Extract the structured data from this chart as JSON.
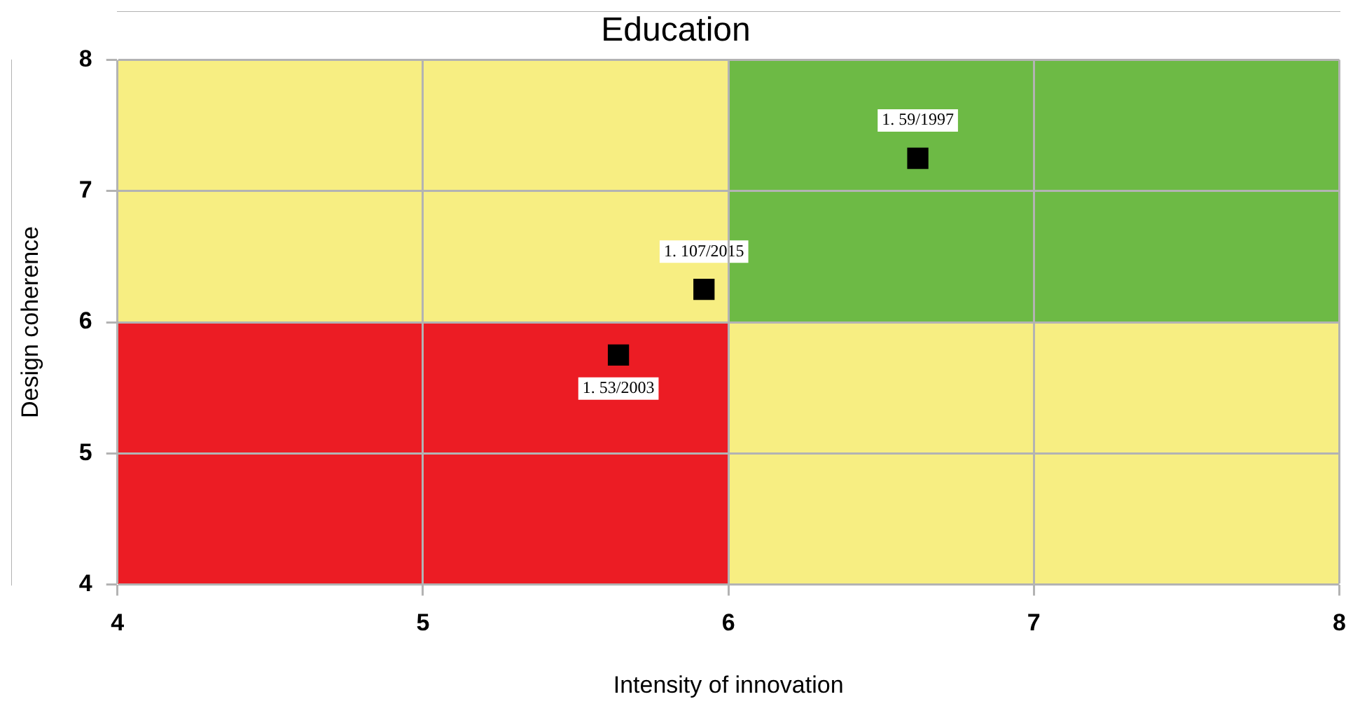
{
  "chart_data": {
    "type": "scatter",
    "title": "Education",
    "xlabel": "Intensity of innovation",
    "ylabel": "Design coherence",
    "series": [
      {
        "color": "#000000",
        "x": [
          6.62,
          5.92,
          5.64
        ],
        "values": [
          7.25,
          6.25,
          5.75
        ]
      }
    ],
    "annotations": [
      {
        "text": "1. 59/1997",
        "x": 6.62,
        "y": 7.25
      },
      {
        "text": "1. 107/2015",
        "x": 5.92,
        "y": 6.25
      },
      {
        "text": "1. 53/2003",
        "x": 5.64,
        "y": 5.75
      }
    ],
    "xlim": [
      4,
      8
    ],
    "xticks": [
      4,
      5,
      6,
      7,
      8
    ],
    "ylim": [
      4,
      8
    ],
    "yticks": [
      4,
      5,
      6,
      7,
      8
    ],
    "grid": true,
    "legend": false,
    "marker": "square"
  }
}
